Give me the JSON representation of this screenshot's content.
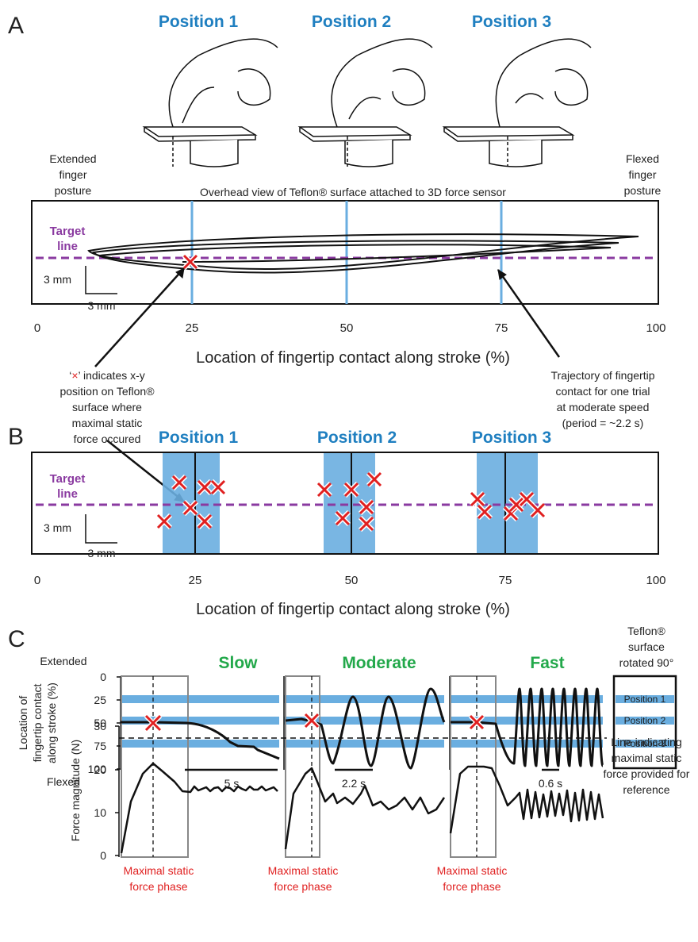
{
  "panel_a": {
    "label": "A",
    "positions": [
      "Position 1",
      "Position 2",
      "Position 3"
    ],
    "extended_label": [
      "Extended",
      "finger",
      "posture"
    ],
    "flexed_label": [
      "Flexed",
      "finger",
      "posture"
    ],
    "surface_caption": "Overhead view of Teflon® surface attached to 3D force sensor",
    "target_label": [
      "Target",
      "line"
    ],
    "scale_vertical": "3 mm",
    "scale_horizontal": "3 mm",
    "ticks": [
      "0",
      "25",
      "50",
      "75",
      "100"
    ],
    "x_axis_label": "Location of fingertip contact along stroke (%)",
    "marker_note": {
      "first_line": [
        "‘",
        "×",
        "’ indicates x-y"
      ],
      "lines": [
        "position on Teflon®",
        "surface where",
        "maximal static",
        "force occured"
      ]
    },
    "trajectory_note": [
      "Trajectory of fingertip",
      "contact for one trial",
      "at moderate speed",
      "(period = ~2.2 s)"
    ]
  },
  "panel_b": {
    "label": "B",
    "positions": [
      "Position 1",
      "Position 2",
      "Position 3"
    ],
    "target_label": [
      "Target",
      "line"
    ],
    "scale_vertical": "3 mm",
    "scale_horizontal": "3 mm",
    "ticks": [
      "0",
      "25",
      "50",
      "75",
      "100"
    ],
    "x_axis_label": "Location of fingertip contact along stroke (%)"
  },
  "panel_c": {
    "label": "C",
    "speeds": [
      "Slow",
      "Moderate",
      "Fast"
    ],
    "extended": "Extended",
    "flexed": "Flexed",
    "location_axis_label": [
      "Location of",
      "fingertip contact",
      "along stroke (%)"
    ],
    "location_ticks": [
      "0",
      "25",
      "50",
      "75",
      "100"
    ],
    "surface_note": [
      "Teflon®",
      "surface",
      "rotated 90°"
    ],
    "surface_positions": [
      "Position 1",
      "Position 2",
      "Position 3"
    ],
    "time_bars": [
      "5 s",
      "2.2 s",
      "0.6 s"
    ],
    "force_axis_label": "Force magnitude (N)",
    "force_ticks": [
      "0",
      "10",
      "20",
      "30"
    ],
    "reference_note": [
      "Line indicating",
      "maximal static",
      "force provided for",
      "reference"
    ],
    "phase_label": [
      "Maximal static",
      "force phase"
    ]
  }
}
